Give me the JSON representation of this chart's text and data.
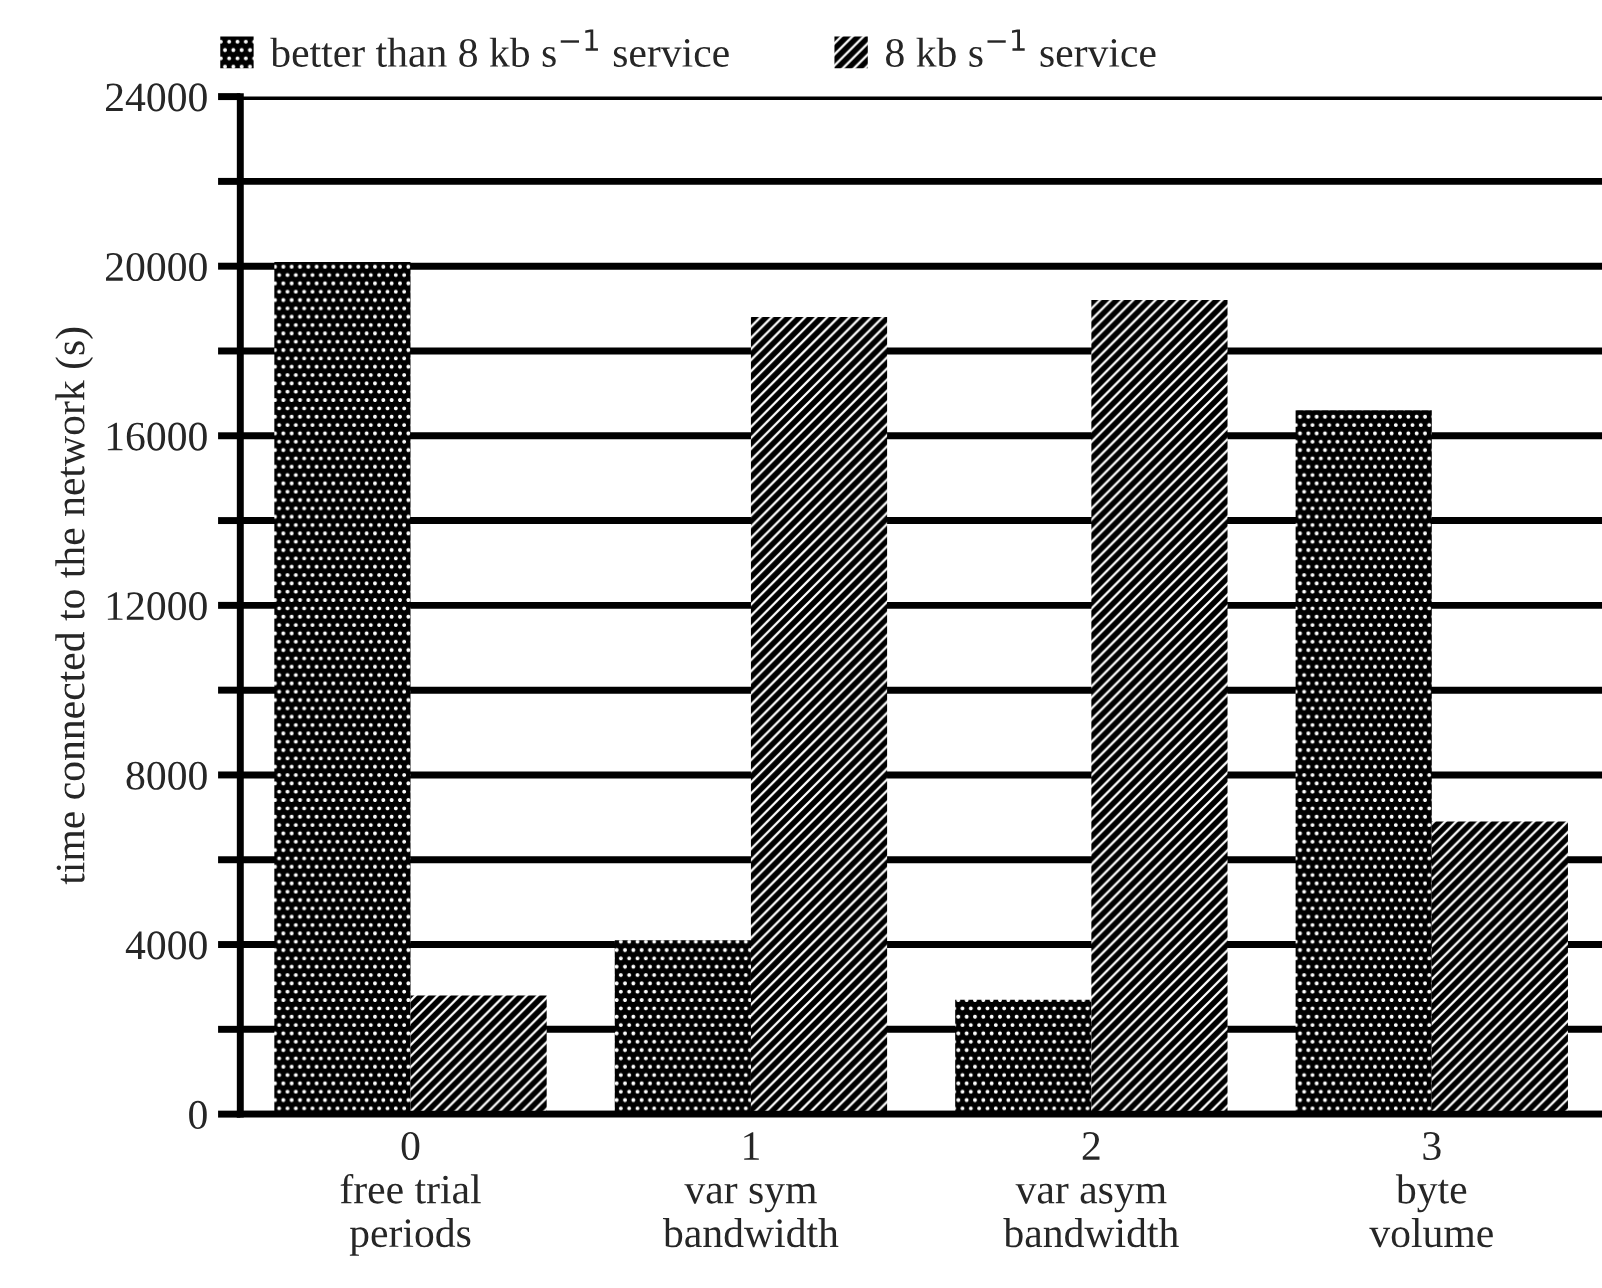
{
  "chart_data": {
    "type": "bar",
    "ylabel": "time connected to the network (s)",
    "categories": [
      "0\nfree trial\nperiods",
      "1\nvar sym\nbandwidth",
      "2\nvar asym\nbandwidth",
      "3\nbyte\nvolume"
    ],
    "series": [
      {
        "name": "better than 8 kb s$^{−1}$ service",
        "color": "#000000",
        "values": [
          20100,
          4100,
          2700,
          16600
        ]
      },
      {
        "name": "8 kb s$^{−1}$ service",
        "color": "#000000",
        "values": [
          2800,
          18800,
          19200,
          6900
        ]
      }
    ],
    "ylim": [
      0,
      24000
    ],
    "yticks": [
      0,
      {
        "value": 2000,
        "label": null
      },
      4000,
      {
        "value": 6000,
        "label": null
      },
      8000,
      {
        "value": 10000,
        "label": null
      },
      12000,
      {
        "value": 14000,
        "label": null
      },
      16000,
      {
        "value": 18000,
        "label": null
      },
      20000,
      {
        "value": 22000,
        "label": null
      },
      24000
    ],
    "grid": "y",
    "legend": "top"
  }
}
